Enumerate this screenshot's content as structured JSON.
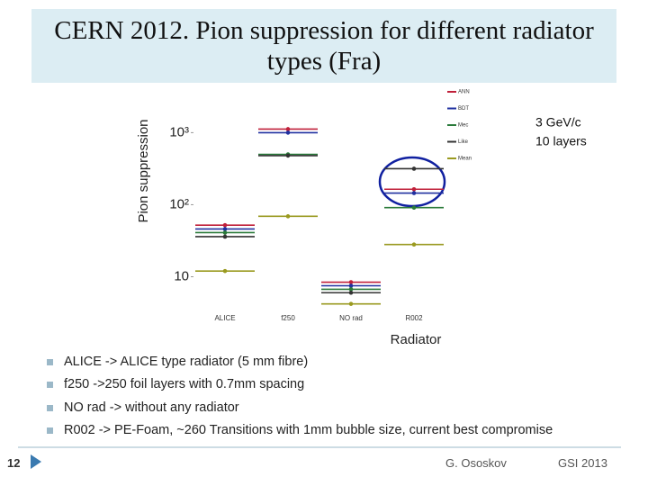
{
  "header": {
    "title": "CERN 2012. Pion suppression for different radiator types (Fra)"
  },
  "chart_data": {
    "type": "line-segments",
    "y_label": "Pion suppression",
    "x_label": "Radiator",
    "annotation": [
      "3 GeV/c",
      "10 layers"
    ],
    "categories": [
      "ALICE",
      "f250",
      "NO rad",
      "R002"
    ],
    "series": [
      {
        "name": "ANN",
        "color": "#c0203a",
        "values": [
          52,
          1120,
          8.4,
          164
        ]
      },
      {
        "name": "BDT",
        "color": "#2030a0",
        "values": [
          46,
          1000,
          7.5,
          145
        ]
      },
      {
        "name": "Mec",
        "color": "#2a7a3a",
        "values": [
          41,
          500,
          6.7,
          91
        ]
      },
      {
        "name": "Like",
        "color": "#333333",
        "values": [
          36,
          480,
          6.0,
          316
        ]
      },
      {
        "name": "Mean",
        "color": "#9a9a20",
        "values": [
          12,
          69,
          4.2,
          28
        ]
      }
    ],
    "log_y": true,
    "ylim": [
      3.4,
      2200
    ],
    "yticks": [
      10,
      {
        "value": 100,
        "label": "10²"
      },
      {
        "value": 1000,
        "label": "10³"
      }
    ],
    "legend": "top-right"
  },
  "bullets": [
    "ALICE -> ALICE type radiator (5 mm fibre)",
    "f250 ->250 foil layers with 0.7mm spacing",
    "NO rad -> without any radiator",
    "R002 -> PE-Foam, ~260 Transitions with 1mm bubble size,  current best compromise"
  ],
  "footer": {
    "page": "12",
    "author": "G. Ososkov",
    "venue": "GSI 2013"
  }
}
